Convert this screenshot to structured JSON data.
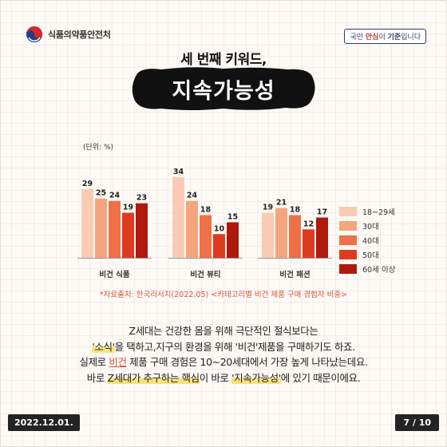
{
  "header": {
    "logo_text": "식품의약품안전처",
    "slogan_pre": "국민 ",
    "slogan_b1": "안심",
    "slogan_mid": "이 ",
    "slogan_b2": "기준",
    "slogan_post": "입니다"
  },
  "kicker": "세 번째 키워드,",
  "title": "지속가능성",
  "colors": {
    "title_bg": "#111111",
    "accent": "#d9553b",
    "series": [
      "#f9cbb3",
      "#f5a57d",
      "#ef7047",
      "#dd3b1f",
      "#b0190d"
    ]
  },
  "chart_data": {
    "type": "bar",
    "unit": "(단위: %)",
    "categories": [
      "비건 식품",
      "비건 뷰티",
      "비건 패션"
    ],
    "series": [
      {
        "name": "18~29세",
        "values": [
          29,
          34,
          19
        ]
      },
      {
        "name": "30대",
        "values": [
          25,
          24,
          21
        ]
      },
      {
        "name": "40대",
        "values": [
          24,
          18,
          18
        ]
      },
      {
        "name": "50대",
        "values": [
          19,
          10,
          12
        ]
      },
      {
        "name": "60세 이상",
        "values": [
          23,
          15,
          17
        ]
      }
    ],
    "ylim": [
      0,
      34
    ],
    "grid": false,
    "legend": "right"
  },
  "source": "*자료출처: 한국리서치(2022.05) <카테고리별 비건 제품 구매 경험자 비중>",
  "paragraph": {
    "l1": "Z세대는 건강한 몸을 위해 극단적인 절식보다는",
    "l2_a": "'소식'",
    "l2_b": "을 택하고,지구의 환경을 위해 '비건'제품을 구매하기도 하죠.",
    "l3_a": "실제로 ",
    "l3_b": "비건",
    "l3_c": " 제품 구매 경험은 10~20세대에서 가장 높게 나타났는데요.",
    "l4_a": "바로 ",
    "l4_b": "Z세대가 추구하는 핵심",
    "l4_c": "이 바로 ",
    "l4_d": "'지속가능성'",
    "l4_e": "에 있기 때문이에요."
  },
  "footer": {
    "date": "2022.12.01.",
    "page": "7 / 10"
  }
}
